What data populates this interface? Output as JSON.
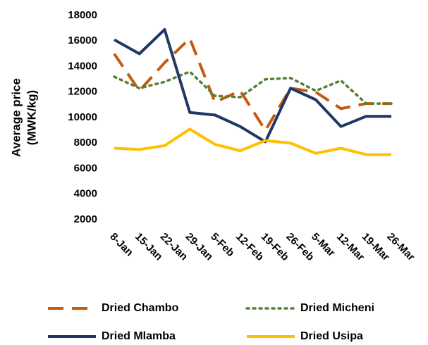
{
  "chart_data": {
    "type": "line",
    "ylabel": [
      "Average price",
      "(MWK/kg)"
    ],
    "categories": [
      "8-Jan",
      "15-Jan",
      "22-Jan",
      "29-Jan",
      "5-Feb",
      "12-Feb",
      "19-Feb",
      "26-Feb",
      "5-Mar",
      "12-Mar",
      "19-Mar",
      "26-Mar"
    ],
    "series": [
      {
        "name": "Dried Chambo",
        "color": "#c55a11",
        "style": "dashed",
        "values": [
          15000,
          12100,
          14300,
          16200,
          11200,
          12100,
          9000,
          12300,
          12000,
          10700,
          11100,
          11100
        ]
      },
      {
        "name": "Dried Micheni",
        "color": "#548235",
        "style": "dotted",
        "values": [
          13200,
          12300,
          12800,
          13600,
          11700,
          11600,
          13000,
          13100,
          12100,
          12900,
          11100,
          11100
        ]
      },
      {
        "name": "Dried Mlamba",
        "color": "#1f3864",
        "style": "solid",
        "values": [
          16100,
          15000,
          16900,
          10400,
          10200,
          9300,
          8100,
          12300,
          11400,
          9300,
          10100,
          10100
        ]
      },
      {
        "name": "Dried Usipa",
        "color": "#ffc000",
        "style": "solid",
        "values": [
          7600,
          7500,
          7800,
          9100,
          7900,
          7400,
          8200,
          8000,
          7200,
          7600,
          7100,
          7100
        ]
      }
    ],
    "ylim": [
      2000,
      18000
    ],
    "yticks": [
      2000,
      4000,
      6000,
      8000,
      10000,
      12000,
      14000,
      16000,
      18000
    ],
    "grid": false
  }
}
